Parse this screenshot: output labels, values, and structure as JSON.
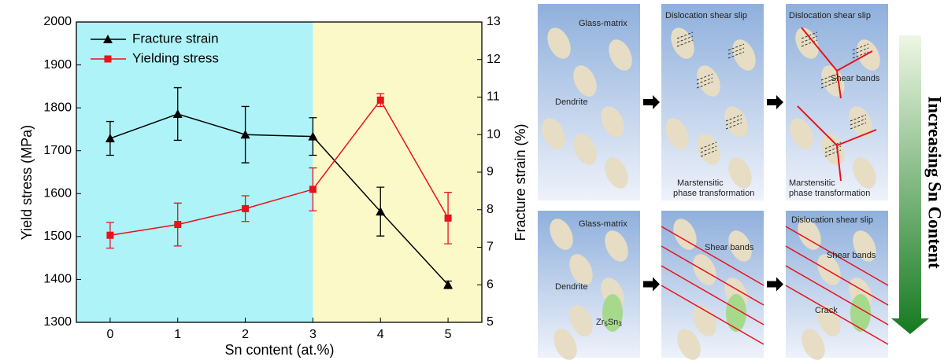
{
  "chart_data": {
    "type": "line",
    "x": [
      0,
      1,
      2,
      3,
      4,
      5
    ],
    "xlim": [
      -0.5,
      5.5
    ],
    "xticks": [
      0,
      1,
      2,
      3,
      4,
      5
    ],
    "ylim": [
      1300,
      2000
    ],
    "yticks": [
      1300,
      1400,
      1500,
      1600,
      1700,
      1800,
      1900,
      2000
    ],
    "y2lim": [
      5,
      13
    ],
    "y2ticks": [
      5,
      6,
      7,
      8,
      9,
      10,
      11,
      12,
      13
    ],
    "xlabel": "Sn content (at.%)",
    "ylabel": "Yield stress (MPa)",
    "y2label": "Fracture strain (%)",
    "legend": "upper left",
    "background_regions": [
      {
        "from": -0.5,
        "to": 3,
        "color": "#aef3f8"
      },
      {
        "from": 3,
        "to": 5.5,
        "color": "#fcf9c9"
      }
    ],
    "series": [
      {
        "name": "Fracture strain",
        "color": "#000000",
        "marker": "triangle",
        "axis": "y2",
        "values": [
          9.9,
          10.55,
          10.0,
          9.95,
          7.95,
          6.0
        ],
        "errors": [
          0.45,
          0.7,
          0.75,
          0.5,
          0.65,
          0.1
        ]
      },
      {
        "name": "Yielding stress",
        "color": "#e8121b",
        "marker": "square",
        "axis": "y",
        "values": [
          1503,
          1528,
          1565,
          1610,
          1818,
          1543
        ],
        "errors": [
          30,
          50,
          30,
          50,
          15,
          60
        ]
      }
    ]
  },
  "diagram": {
    "title": "Increasing Sn Content",
    "glass_matrix": "Glass-matrix",
    "dendrite": "Dendrite",
    "dislocation": "Dislocation shear slip",
    "shear_bands": "Shear bands",
    "martensitic": "Marstensitic",
    "phase": "phase  transformation",
    "crack": "Crack",
    "zr_phase": [
      "Zr",
      "5",
      "Sn",
      "3"
    ]
  }
}
